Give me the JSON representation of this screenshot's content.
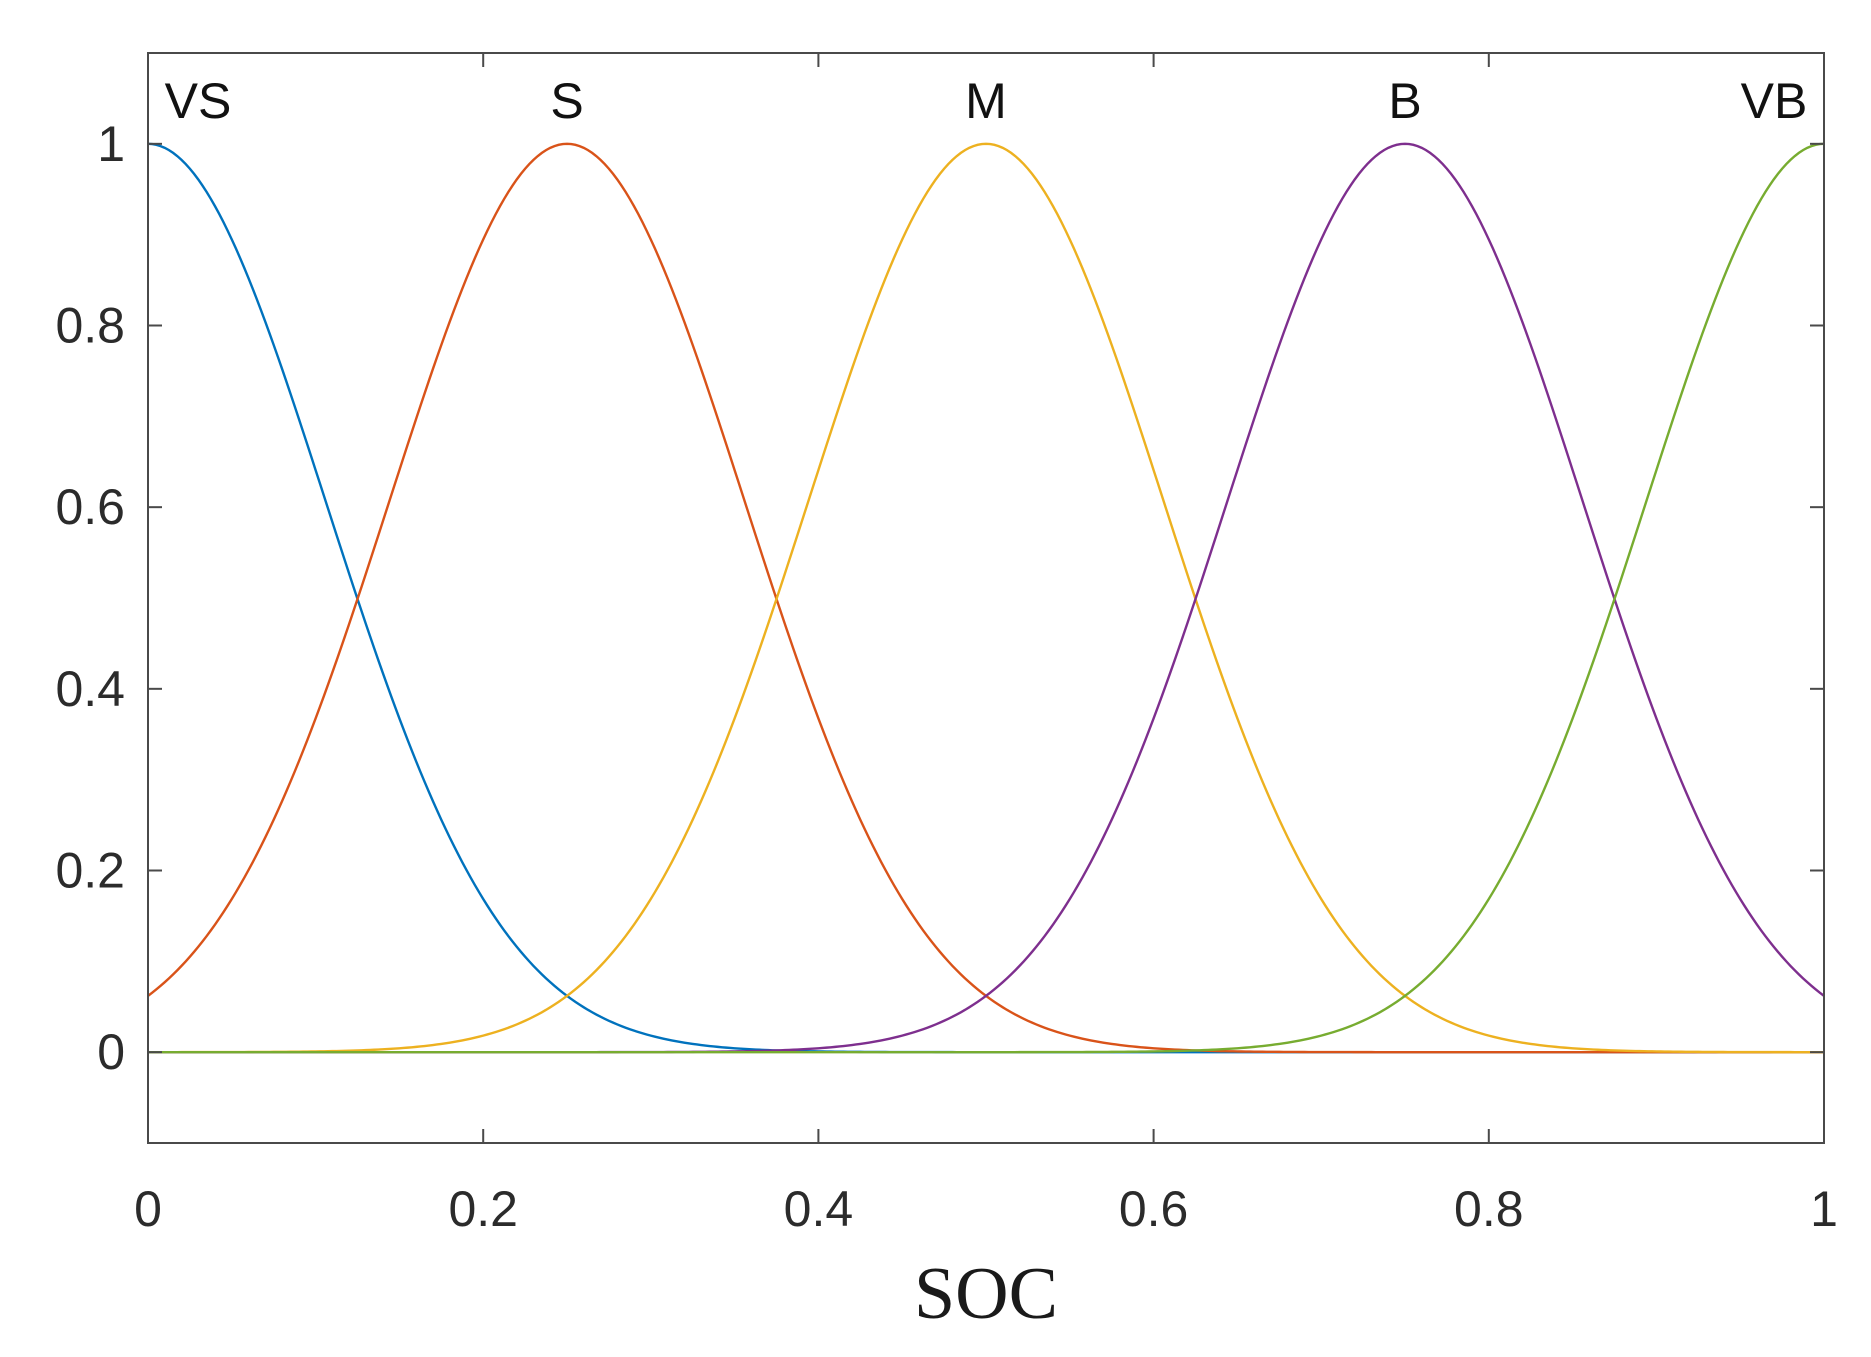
{
  "chart_data": {
    "type": "line",
    "title": "",
    "xlabel": "SOC",
    "ylabel": "",
    "xlim": [
      0,
      1
    ],
    "ylim": [
      -0.1,
      1.1
    ],
    "xticks": [
      "0",
      "0.2",
      "0.4",
      "0.6",
      "0.8",
      "1"
    ],
    "yticks": [
      "0",
      "0.2",
      "0.4",
      "0.6",
      "0.8",
      "1"
    ],
    "grid": false,
    "legend": "none",
    "curve_shape": "gaussian",
    "series": [
      {
        "name": "VS",
        "center": 0.0,
        "sigma": 0.106,
        "color": "#0072BD"
      },
      {
        "name": "S",
        "center": 0.25,
        "sigma": 0.106,
        "color": "#D95319"
      },
      {
        "name": "M",
        "center": 0.5,
        "sigma": 0.106,
        "color": "#EDB120"
      },
      {
        "name": "B",
        "center": 0.75,
        "sigma": 0.106,
        "color": "#7E2F8E"
      },
      {
        "name": "VB",
        "center": 1.0,
        "sigma": 0.106,
        "color": "#77AC30"
      }
    ]
  }
}
